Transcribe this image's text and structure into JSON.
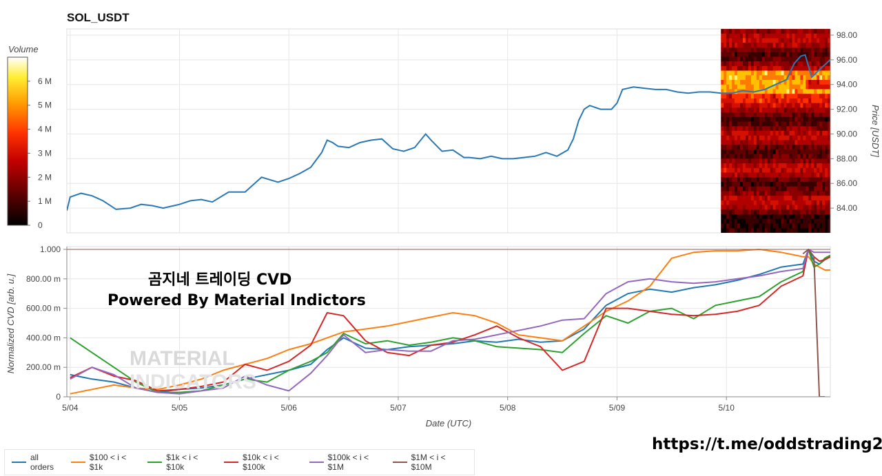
{
  "title": "SOL_USDT",
  "overlay": {
    "line1": "곰지네 트레이딩 CVD",
    "line2": "Powered By Material Indictors"
  },
  "link": "https://t.me/oddstrading2",
  "watermark": {
    "line1": "MATERIAL",
    "line2": "INDICATORS"
  },
  "colorbar": {
    "title": "Volume",
    "ticks": [
      "0",
      "1 M",
      "2 M",
      "3 M",
      "4 M",
      "5 M",
      "6 M"
    ],
    "tick_values": [
      0,
      1,
      2,
      3,
      4,
      5,
      6
    ]
  },
  "x_axis": {
    "label": "Date (UTC)",
    "ticks": [
      "5/04",
      "5/05",
      "5/06",
      "5/07",
      "5/08",
      "5/09",
      "5/10"
    ],
    "tick_days": [
      0,
      1,
      2,
      3,
      4,
      5,
      6
    ]
  },
  "colors": {
    "all_orders": "#1f77b4",
    "c100_1k": "#ff7f0e",
    "c1k_10k": "#2ca02c",
    "c10k_100k": "#d62728",
    "c100k_1m": "#9467bd",
    "c1m_10m": "#8c564b"
  },
  "legend": [
    {
      "label": "all orders",
      "color": "#1f77b4"
    },
    {
      "label": "$100 < i < $1k",
      "color": "#ff7f0e"
    },
    {
      "label": "$1k < i < $10k",
      "color": "#2ca02c"
    },
    {
      "label": "$10k < i < $100k",
      "color": "#d62728"
    },
    {
      "label": "$100k < i < $1M",
      "color": "#9467bd"
    },
    {
      "label": "$1M < i < $10M",
      "color": "#8c564b"
    }
  ],
  "chart_data": [
    {
      "type": "line",
      "title": "SOL_USDT",
      "ylabel": "Price [USDT]",
      "ylim": [
        82.0,
        98.5
      ],
      "y_ticks": [
        "84.00",
        "86.00",
        "88.00",
        "90.00",
        "92.00",
        "94.00",
        "96.00",
        "98.00"
      ],
      "y_tick_values": [
        84,
        86,
        88,
        90,
        92,
        94,
        96,
        98
      ],
      "x_unit": "days since 5/04 00:00 UTC",
      "xlim": [
        -0.03,
        6.95
      ],
      "series": [
        {
          "x": [
            -0.03,
            0.0,
            0.1,
            0.2,
            0.3,
            0.42,
            0.55,
            0.65,
            0.75,
            0.85,
            1.0,
            1.1,
            1.2,
            1.3,
            1.45,
            1.6,
            1.75,
            1.9,
            2.0,
            2.1,
            2.2,
            2.3,
            2.35,
            2.4,
            2.45,
            2.55,
            2.65,
            2.75,
            2.85,
            2.95,
            3.05,
            3.15,
            3.25,
            3.3,
            3.4,
            3.5,
            3.6,
            3.65,
            3.75,
            3.85,
            3.95,
            4.05,
            4.15,
            4.25,
            4.35,
            4.45,
            4.55,
            4.6,
            4.65,
            4.7,
            4.75,
            4.85,
            4.95,
            5.0,
            5.05,
            5.15,
            5.25,
            5.35,
            5.45,
            5.55,
            5.65,
            5.75,
            5.85,
            5.95,
            6.05,
            6.15,
            6.25,
            6.35,
            6.45,
            6.55,
            6.62,
            6.68,
            6.72,
            6.78,
            6.85,
            6.95
          ],
          "y": [
            83.8,
            84.9,
            85.2,
            85.0,
            84.6,
            83.9,
            84.0,
            84.3,
            84.2,
            84.0,
            84.3,
            84.6,
            84.7,
            84.5,
            85.3,
            85.3,
            86.5,
            86.1,
            86.4,
            86.8,
            87.3,
            88.5,
            89.5,
            89.3,
            89.0,
            88.9,
            89.3,
            89.5,
            89.6,
            88.8,
            88.6,
            88.9,
            90.0,
            89.5,
            88.6,
            88.7,
            88.1,
            88.1,
            88.0,
            88.2,
            88.0,
            88.0,
            88.1,
            88.2,
            88.5,
            88.2,
            88.7,
            89.6,
            91.1,
            92.0,
            92.3,
            92.0,
            92.0,
            92.5,
            93.6,
            93.8,
            93.7,
            93.6,
            93.6,
            93.4,
            93.3,
            93.4,
            93.4,
            93.3,
            93.3,
            93.5,
            93.4,
            93.6,
            94.0,
            94.4,
            95.7,
            96.3,
            96.4,
            94.6,
            95.2,
            96.0
          ]
        }
      ]
    },
    {
      "type": "line",
      "ylabel": "Normalized CVD [arb. u.]",
      "xlabel": "Date (UTC)",
      "ylim": [
        0,
        1.0
      ],
      "y_ticks": [
        "0",
        "200.00 m",
        "400.00 m",
        "600.00 m",
        "800.00 m",
        "1.000"
      ],
      "y_tick_values": [
        0,
        0.2,
        0.4,
        0.6,
        0.8,
        1.0
      ],
      "x_unit": "days since 5/04 00:00 UTC",
      "xlim": [
        -0.03,
        6.95
      ],
      "x": [
        0.0,
        0.2,
        0.4,
        0.6,
        0.8,
        1.0,
        1.2,
        1.4,
        1.6,
        1.8,
        2.0,
        2.2,
        2.35,
        2.5,
        2.7,
        2.9,
        3.1,
        3.3,
        3.5,
        3.7,
        3.9,
        4.1,
        4.3,
        4.5,
        4.7,
        4.9,
        5.1,
        5.3,
        5.5,
        5.7,
        5.9,
        6.1,
        6.3,
        6.5,
        6.7,
        6.75,
        6.8,
        6.85,
        6.9,
        6.95
      ],
      "series": [
        {
          "name": "all orders",
          "values": [
            0.15,
            0.12,
            0.1,
            0.06,
            0.03,
            0.05,
            0.06,
            0.08,
            0.12,
            0.15,
            0.18,
            0.22,
            0.32,
            0.4,
            0.33,
            0.32,
            0.34,
            0.35,
            0.36,
            0.38,
            0.37,
            0.39,
            0.37,
            0.38,
            0.46,
            0.62,
            0.7,
            0.73,
            0.71,
            0.74,
            0.76,
            0.79,
            0.83,
            0.88,
            0.9,
            1.0,
            0.92,
            0.9,
            0.93,
            0.95
          ]
        },
        {
          "name": "$100 < i < $1k",
          "values": [
            0.02,
            0.05,
            0.08,
            0.06,
            0.05,
            0.08,
            0.12,
            0.18,
            0.22,
            0.26,
            0.32,
            0.36,
            0.4,
            0.44,
            0.46,
            0.48,
            0.51,
            0.54,
            0.57,
            0.55,
            0.5,
            0.42,
            0.4,
            0.38,
            0.48,
            0.58,
            0.65,
            0.75,
            0.94,
            0.98,
            0.99,
            0.99,
            1.0,
            0.98,
            0.95,
            0.95,
            0.9,
            0.88,
            0.86,
            0.86
          ]
        },
        {
          "name": "$1k < i < $10k",
          "values": [
            0.4,
            0.3,
            0.2,
            0.1,
            0.03,
            0.03,
            0.04,
            0.08,
            0.12,
            0.1,
            0.18,
            0.24,
            0.3,
            0.43,
            0.36,
            0.38,
            0.35,
            0.37,
            0.4,
            0.38,
            0.34,
            0.33,
            0.32,
            0.3,
            0.43,
            0.55,
            0.5,
            0.58,
            0.6,
            0.53,
            0.62,
            0.65,
            0.68,
            0.78,
            0.85,
            1.0,
            0.88,
            0.9,
            0.94,
            0.96
          ]
        },
        {
          "name": "$10k < i < $100k",
          "values": [
            0.13,
            0.2,
            0.14,
            0.11,
            0.04,
            0.05,
            0.07,
            0.1,
            0.22,
            0.18,
            0.24,
            0.35,
            0.57,
            0.55,
            0.38,
            0.3,
            0.28,
            0.35,
            0.37,
            0.42,
            0.48,
            0.4,
            0.34,
            0.18,
            0.24,
            0.6,
            0.6,
            0.58,
            0.56,
            0.55,
            0.56,
            0.58,
            0.62,
            0.75,
            0.82,
            1.0,
            0.95,
            0.92,
            0.93,
            0.95
          ]
        },
        {
          "name": "$100k < i < $1M",
          "values": [
            0.12,
            0.2,
            0.15,
            0.06,
            0.03,
            0.02,
            0.04,
            0.06,
            0.14,
            0.08,
            0.04,
            0.16,
            0.28,
            0.42,
            0.3,
            0.32,
            0.31,
            0.31,
            0.38,
            0.39,
            0.42,
            0.45,
            0.48,
            0.52,
            0.53,
            0.7,
            0.78,
            0.8,
            0.78,
            0.77,
            0.78,
            0.8,
            0.82,
            0.85,
            0.87,
            1.0,
            0.98,
            0.98,
            0.98,
            0.98
          ]
        },
        {
          "name": "$1M < i < $10M",
          "values": [
            null,
            null,
            null,
            null,
            null,
            null,
            null,
            null,
            null,
            null,
            null,
            null,
            null,
            null,
            null,
            null,
            null,
            null,
            null,
            null,
            null,
            null,
            null,
            null,
            null,
            null,
            null,
            null,
            null,
            null,
            null,
            null,
            null,
            null,
            0.97,
            1.0,
            0.95,
            0.0,
            0.0,
            null
          ]
        }
      ]
    }
  ]
}
